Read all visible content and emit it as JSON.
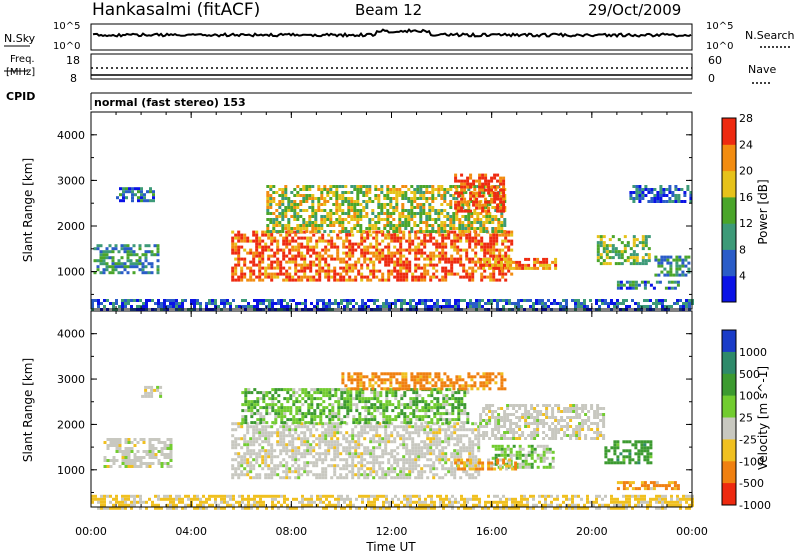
{
  "header": {
    "station": "Hankasalmi (fitACF)",
    "beam": "Beam 12",
    "date": "29/Oct/2009"
  },
  "small_panels": {
    "nsky_label": "N.Sky",
    "nsearch_label": "N.Search",
    "nsky_ticks": [
      "10^5",
      "10^0"
    ],
    "nsearch_ticks": [
      "10^5",
      "10^0"
    ],
    "freq_label_line1": "Freq.",
    "freq_label_line2": "[MHz]",
    "freq_ticks": [
      "18",
      "8"
    ],
    "nave_label": "Nave",
    "nave_ticks": [
      "60",
      "0"
    ],
    "cpid_label": "CPID",
    "cpid_text": "normal (fast stereo) 153"
  },
  "chart_data": [
    {
      "type": "heatmap",
      "panel": "power",
      "ylabel": "Slant Range [km]",
      "yticks": [
        "1000",
        "2000",
        "3000",
        "4000"
      ],
      "ylim": [
        180,
        4500
      ],
      "colorbar_label": "Power [dB]",
      "colorbar_ticks": [
        "4",
        "8",
        "12",
        "16",
        "20",
        "24",
        "28"
      ],
      "colorbar_colors": [
        "#0a12e6",
        "#2a5cc8",
        "#3d9a78",
        "#4aa52a",
        "#e6c21a",
        "#f28c10",
        "#ee2a10"
      ],
      "regions": [
        {
          "t0": 0.1,
          "t1": 2.7,
          "r0": 950,
          "r1": 1600,
          "value": 10
        },
        {
          "t0": 1.0,
          "t1": 2.5,
          "r0": 2550,
          "r1": 2850,
          "value": 8
        },
        {
          "t0": 5.6,
          "t1": 16.8,
          "r0": 800,
          "r1": 1900,
          "value": 24
        },
        {
          "t0": 7.0,
          "t1": 16.5,
          "r0": 1900,
          "r1": 2900,
          "value": 16
        },
        {
          "t0": 14.5,
          "t1": 16.5,
          "r0": 2300,
          "r1": 3150,
          "value": 26
        },
        {
          "t0": 15.5,
          "t1": 18.5,
          "r0": 1050,
          "r1": 1300,
          "value": 22
        },
        {
          "t0": 20.2,
          "t1": 22.3,
          "r0": 1200,
          "r1": 1800,
          "value": 14
        },
        {
          "t0": 22.5,
          "t1": 23.9,
          "r0": 900,
          "r1": 1350,
          "value": 10
        },
        {
          "t0": 21.0,
          "t1": 23.5,
          "r0": 650,
          "r1": 800,
          "value": 8
        },
        {
          "t0": 21.5,
          "t1": 23.9,
          "r0": 2550,
          "r1": 2900,
          "value": 6
        },
        {
          "t0": 0.0,
          "t1": 24.0,
          "r0": 180,
          "r1": 400,
          "value": 6
        }
      ]
    },
    {
      "type": "heatmap",
      "panel": "velocity",
      "ylabel": "Slant Range [km]",
      "yticks": [
        "1000",
        "2000",
        "3000",
        "4000"
      ],
      "ylim": [
        180,
        4500
      ],
      "colorbar_label": "Velocity [m s^-1]",
      "colorbar_ticks": [
        "1000",
        "500",
        "100",
        "25",
        "-25",
        "-100",
        "-500",
        "-1000"
      ],
      "colorbar_colors": [
        "#1a3cc8",
        "#2e8a6a",
        "#3c9a30",
        "#72cc30",
        "#c8c8c0",
        "#f0c020",
        "#f08010",
        "#ee2a10"
      ],
      "regions": [
        {
          "t0": 0.5,
          "t1": 3.2,
          "r0": 1050,
          "r1": 1700,
          "value": 0
        },
        {
          "t0": 2.0,
          "t1": 2.8,
          "r0": 2650,
          "r1": 2850,
          "value": 0
        },
        {
          "t0": 5.6,
          "t1": 15.5,
          "r0": 850,
          "r1": 2050,
          "value": 0
        },
        {
          "t0": 15.5,
          "t1": 20.5,
          "r0": 1700,
          "r1": 2450,
          "value": 0
        },
        {
          "t0": 6.0,
          "t1": 15.0,
          "r0": 2050,
          "r1": 2800,
          "value": 80
        },
        {
          "t0": 10.0,
          "t1": 16.5,
          "r0": 2800,
          "r1": 3150,
          "value": -200
        },
        {
          "t0": 16.0,
          "t1": 18.5,
          "r0": 1050,
          "r1": 1550,
          "value": 60
        },
        {
          "t0": 14.5,
          "t1": 17.0,
          "r0": 1000,
          "r1": 1250,
          "value": -80
        },
        {
          "t0": 20.5,
          "t1": 22.3,
          "r0": 1150,
          "r1": 1650,
          "value": 300
        },
        {
          "t0": 21.0,
          "t1": 23.5,
          "r0": 600,
          "r1": 750,
          "value": -120
        },
        {
          "t0": 0.0,
          "t1": 24.0,
          "r0": 180,
          "r1": 450,
          "value": -40
        }
      ]
    }
  ],
  "x_axis": {
    "ticks": [
      "00:00",
      "04:00",
      "08:00",
      "12:00",
      "16:00",
      "20:00",
      "00:00"
    ],
    "label": "Time UT",
    "range_hours": [
      0,
      24
    ]
  }
}
